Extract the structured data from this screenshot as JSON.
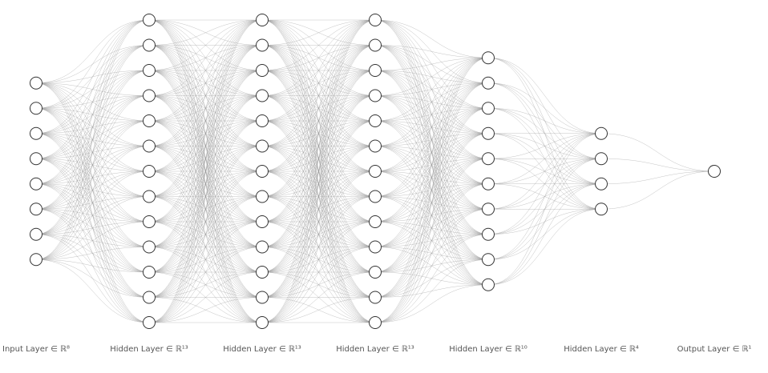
{
  "colors": {
    "background": "#ffffff",
    "edge": "#9a9a9a",
    "node_stroke": "#333333",
    "node_fill": "#ffffff",
    "label": "#555555"
  },
  "network": {
    "layers": [
      {
        "label": "Input Layer ∈ ℝ⁸",
        "units": 8
      },
      {
        "label": "Hidden Layer ∈ ℝ¹³",
        "units": 13
      },
      {
        "label": "Hidden Layer ∈ ℝ¹³",
        "units": 13
      },
      {
        "label": "Hidden Layer ∈ ℝ¹³",
        "units": 13
      },
      {
        "label": "Hidden Layer ∈ ℝ¹⁰",
        "units": 10
      },
      {
        "label": "Hidden Layer ∈ ℝ⁴",
        "units": 4
      },
      {
        "label": "Output Layer ∈ ℝ¹",
        "units": 1
      }
    ]
  }
}
